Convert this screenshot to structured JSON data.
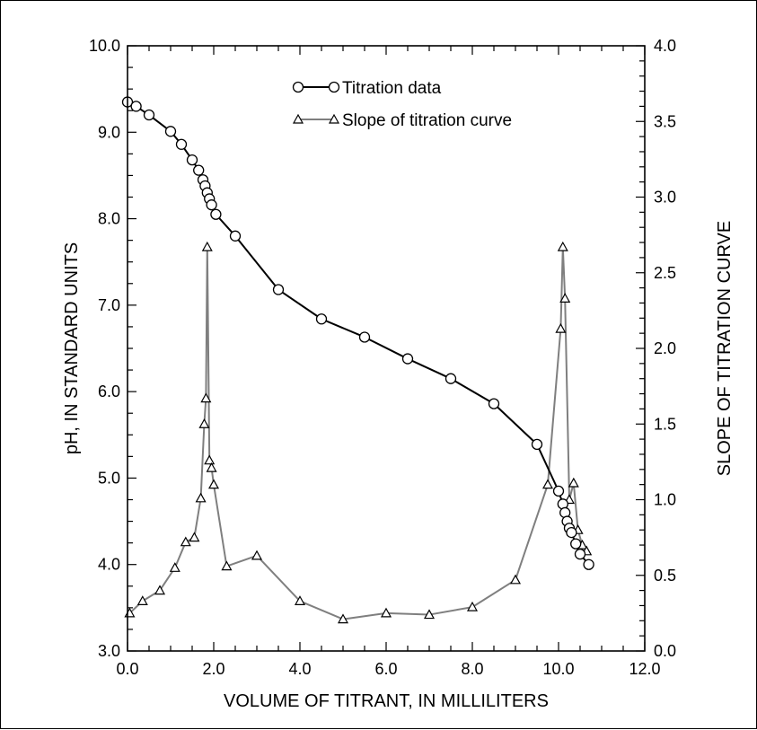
{
  "chart_data": {
    "type": "line",
    "xlabel": "VOLUME OF TITRANT, IN MILLILITERS",
    "ylabel_left": "pH, IN STANDARD UNITS",
    "ylabel_right": "SLOPE OF TITRATION CURVE",
    "xlim": [
      0.0,
      12.0
    ],
    "ylim_left": [
      3.0,
      10.0
    ],
    "ylim_right": [
      0.0,
      4.0
    ],
    "x_ticks": [
      "0.0",
      "2.0",
      "4.0",
      "6.0",
      "8.0",
      "10.0",
      "12.0"
    ],
    "y_left_ticks": [
      "3.0",
      "4.0",
      "5.0",
      "6.0",
      "7.0",
      "8.0",
      "9.0",
      "10.0"
    ],
    "y_right_ticks": [
      "0.0",
      "0.5",
      "1.0",
      "1.5",
      "2.0",
      "2.5",
      "3.0",
      "3.5",
      "4.0"
    ],
    "grid": false,
    "legend_position": "top-center",
    "series": [
      {
        "name": "Titration data",
        "axis": "left",
        "marker": "circle",
        "color": "#000000",
        "x": [
          0.0,
          0.2,
          0.5,
          1.0,
          1.25,
          1.5,
          1.65,
          1.75,
          1.8,
          1.85,
          1.9,
          1.95,
          2.05,
          2.5,
          3.5,
          4.5,
          5.5,
          6.5,
          7.5,
          8.5,
          9.5,
          10.0,
          10.1,
          10.15,
          10.2,
          10.25,
          10.3,
          10.4,
          10.5,
          10.7
        ],
        "values": [
          9.35,
          9.3,
          9.2,
          9.01,
          8.86,
          8.68,
          8.56,
          8.45,
          8.38,
          8.3,
          8.23,
          8.16,
          8.05,
          7.8,
          7.18,
          6.84,
          6.63,
          6.38,
          6.15,
          5.86,
          5.39,
          4.85,
          4.7,
          4.6,
          4.5,
          4.42,
          4.37,
          4.24,
          4.12,
          4.0
        ]
      },
      {
        "name": "Slope of titration curve",
        "axis": "right",
        "marker": "triangle",
        "color": "#7f7f7f",
        "x": [
          0.05,
          0.35,
          0.75,
          1.1,
          1.35,
          1.55,
          1.7,
          1.78,
          1.82,
          1.85,
          1.9,
          1.95,
          2.0,
          2.3,
          3.0,
          4.0,
          5.0,
          6.0,
          7.0,
          8.0,
          9.0,
          9.75,
          10.05,
          10.1,
          10.15,
          10.25,
          10.35,
          10.45,
          10.55,
          10.65
        ],
        "values": [
          0.25,
          0.33,
          0.4,
          0.55,
          0.72,
          0.75,
          1.01,
          1.5,
          1.67,
          2.67,
          1.26,
          1.21,
          1.1,
          0.56,
          0.63,
          0.33,
          0.21,
          0.25,
          0.24,
          0.29,
          0.47,
          1.1,
          2.13,
          2.67,
          2.33,
          1.0,
          1.11,
          0.8,
          0.7,
          0.66
        ]
      }
    ]
  }
}
